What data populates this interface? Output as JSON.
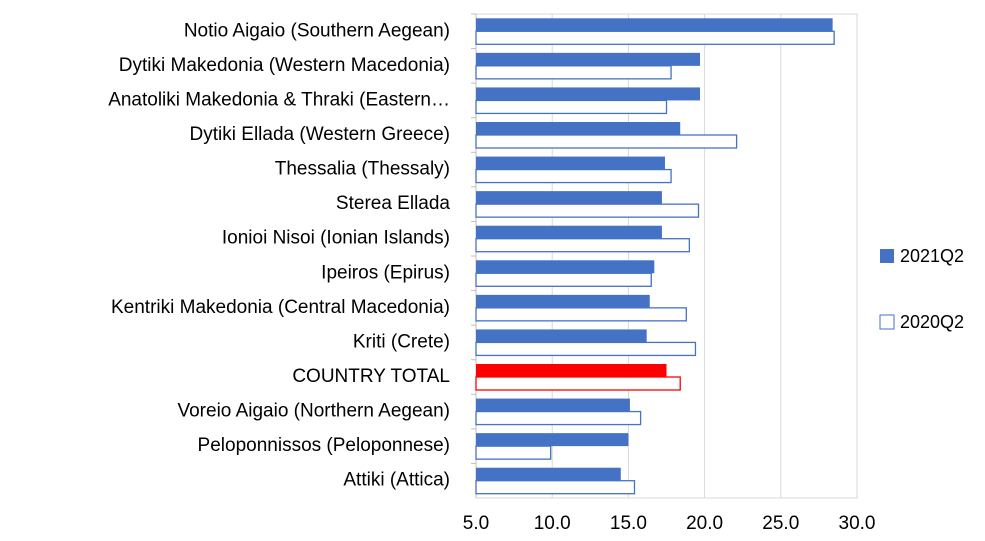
{
  "chart_data": {
    "type": "hbar",
    "categories": [
      "Notio Aigaio (Southern Aegean)",
      "Dytiki Makedonia (Western Macedonia)",
      "Anatoliki Makedonia & Thraki (Eastern…",
      "Dytiki Ellada (Western Greece)",
      "Thessalia (Thessaly)",
      "Sterea Ellada",
      "Ionioi Nisoi (Ionian Islands)",
      "Ipeiros (Epirus)",
      "Kentriki Makedonia (Central Macedonia)",
      "Kriti (Crete)",
      "COUNTRY TOTAL",
      "Voreio Aigaio (Northern Aegean)",
      "Peloponnissos (Peloponnese)",
      "Attiki (Attica)"
    ],
    "series": [
      {
        "name": "2021Q2",
        "color": "#4472c4",
        "fill": "solid",
        "colors": [
          "#4472c4",
          "#4472c4",
          "#4472c4",
          "#4472c4",
          "#4472c4",
          "#4472c4",
          "#4472c4",
          "#4472c4",
          "#4472c4",
          "#4472c4",
          "#ff0000",
          "#4472c4",
          "#4472c4",
          "#4472c4"
        ],
        "values": [
          28.4,
          19.7,
          19.7,
          18.4,
          17.4,
          17.2,
          17.2,
          16.7,
          16.4,
          16.2,
          17.5,
          15.1,
          15.0,
          14.5
        ]
      },
      {
        "name": "2020Q2",
        "color": "#4472c4",
        "fill": "hollow",
        "colors": [
          "#4472c4",
          "#4472c4",
          "#4472c4",
          "#4472c4",
          "#4472c4",
          "#4472c4",
          "#4472c4",
          "#4472c4",
          "#4472c4",
          "#4472c4",
          "#ff0000",
          "#4472c4",
          "#4472c4",
          "#4472c4"
        ],
        "values": [
          28.5,
          17.8,
          17.5,
          22.1,
          17.8,
          19.6,
          19.0,
          16.5,
          18.8,
          19.4,
          18.4,
          15.8,
          9.9,
          15.4
        ]
      }
    ],
    "xlim": [
      5,
      30
    ],
    "xticks": [
      {
        "value": 5,
        "label": "5.0"
      },
      {
        "value": 10,
        "label": "10.0"
      },
      {
        "value": 15,
        "label": "15.0"
      },
      {
        "value": 20,
        "label": "20.0"
      },
      {
        "value": 25,
        "label": "25.0"
      },
      {
        "value": 30,
        "label": "30.0"
      }
    ],
    "grid": true,
    "legend": "right"
  }
}
